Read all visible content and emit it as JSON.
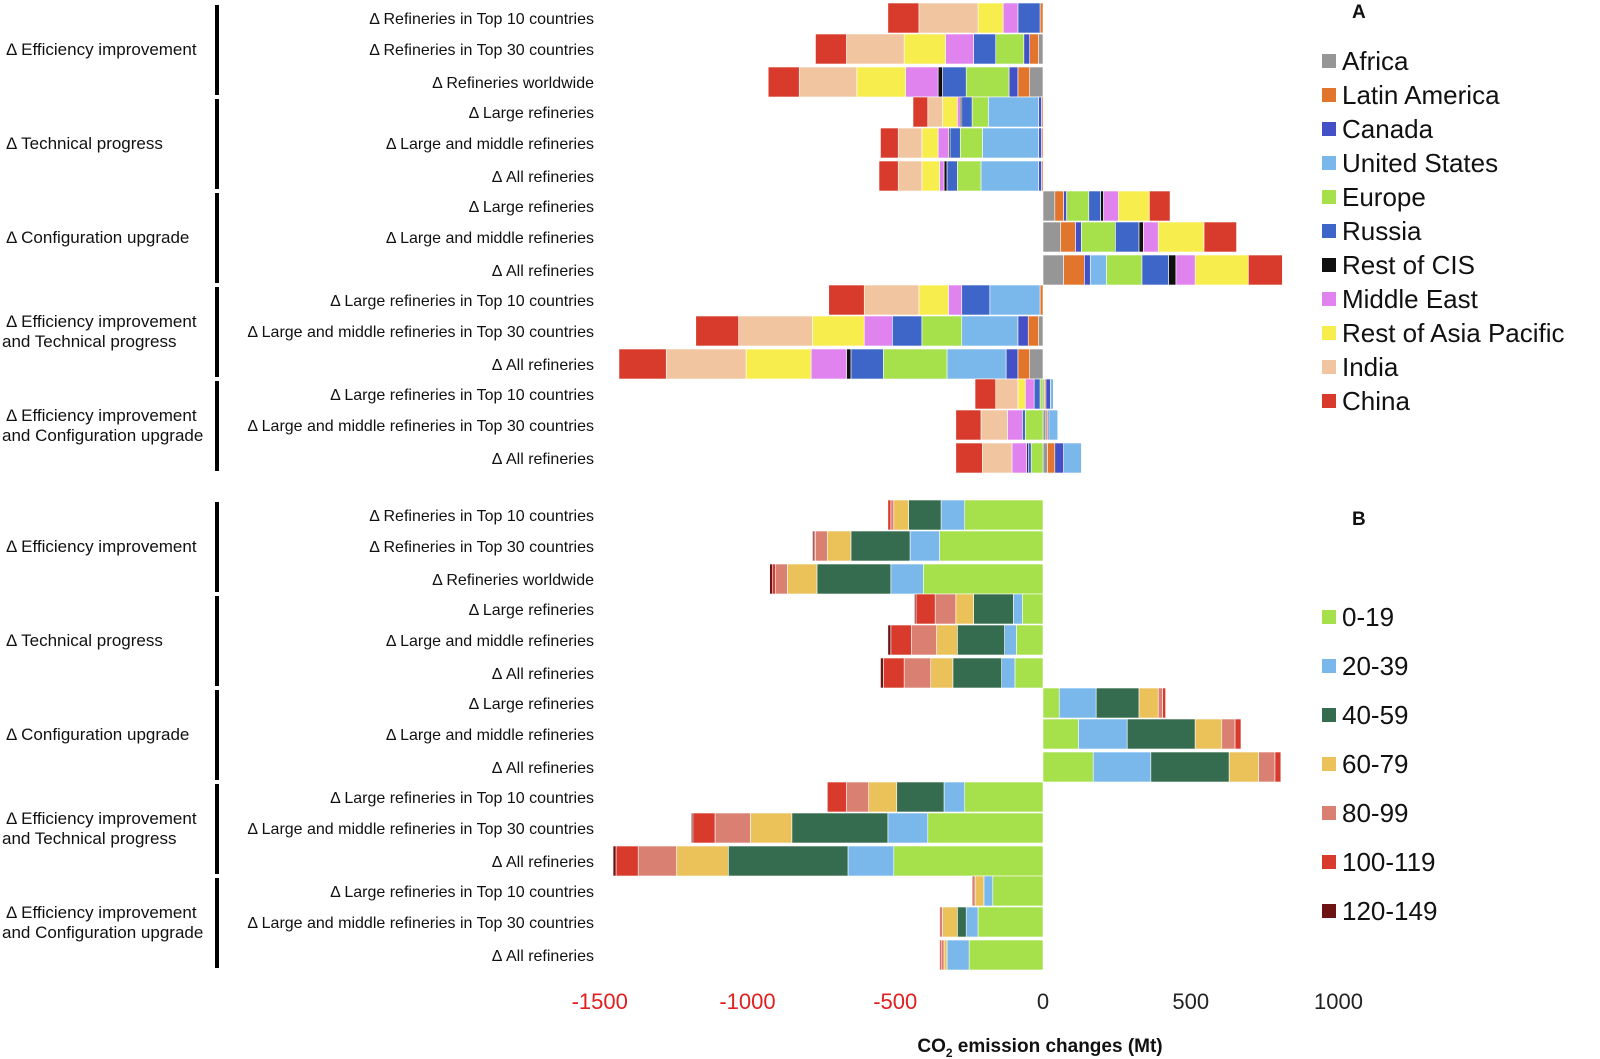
{
  "chart_data": [
    {
      "panel": "A",
      "type": "bar",
      "stacked": true,
      "orientation": "horizontal",
      "stack_by": "region",
      "xlim": [
        -1500,
        1000
      ],
      "xlabel": "CO2 emission changes (Mt)",
      "groups": [
        {
          "label": "Δ Efficiency improvement",
          "rows": [
            {
              "label": "Δ Refineries in Top 10 countries",
              "values": [
                0,
                10,
                0,
                0,
                0,
                75,
                0,
                50,
                85,
                200,
                105
              ]
            },
            {
              "label": "Δ Refineries in Top 30 countries",
              "values": [
                15,
                30,
                20,
                0,
                95,
                75,
                0,
                95,
                140,
                195,
                105
              ]
            },
            {
              "label": "Δ Refineries worldwide",
              "values": [
                45,
                40,
                30,
                0,
                145,
                80,
                15,
                110,
                165,
                195,
                105
              ]
            }
          ]
        },
        {
          "label": "Δ Technical progress",
          "rows": [
            {
              "label": "Δ Large refineries",
              "values": [
                0,
                5,
                10,
                170,
                55,
                35,
                5,
                10,
                50,
                50,
                50
              ]
            },
            {
              "label": "Δ Large and middle refineries",
              "values": [
                0,
                5,
                10,
                190,
                75,
                35,
                5,
                35,
                55,
                80,
                60
              ]
            },
            {
              "label": "Δ All refineries",
              "values": [
                0,
                5,
                10,
                195,
                80,
                35,
                10,
                15,
                60,
                80,
                65
              ]
            }
          ]
        },
        {
          "label": "Δ Configuration upgrade",
          "rows": [
            {
              "label": "Δ Large refineries",
              "values": [
                40,
                30,
                10,
                0,
                75,
                40,
                10,
                50,
                105,
                0,
                70
              ]
            },
            {
              "label": "Δ Large and middle refineries",
              "values": [
                60,
                50,
                20,
                0,
                115,
                80,
                15,
                50,
                155,
                0,
                110
              ]
            },
            {
              "label": "Δ All refineries",
              "values": [
                70,
                70,
                20,
                55,
                120,
                90,
                25,
                65,
                180,
                0,
                115
              ]
            }
          ]
        },
        {
          "label": "Δ Efficiency improvement and Technical progress",
          "rows": [
            {
              "label": "Δ Large refineries in Top 10 countries",
              "values": [
                0,
                10,
                0,
                170,
                0,
                95,
                0,
                45,
                100,
                185,
                120
              ]
            },
            {
              "label": "Δ Large and middle refineries in Top 30 countries",
              "values": [
                15,
                35,
                35,
                190,
                135,
                100,
                0,
                95,
                175,
                250,
                145
              ]
            },
            {
              "label": "Δ All refineries",
              "values": [
                45,
                40,
                40,
                200,
                215,
                110,
                15,
                120,
                220,
                270,
                160
              ]
            }
          ]
        },
        {
          "label": "Δ Efficiency improvement and Configuration upgrade",
          "rows": [
            {
              "label": "Δ Large refineries in Top 10 countries",
              "values": [
                5,
                5,
                15,
                10,
                10,
                20,
                0,
                30,
                25,
                75,
                70
              ]
            },
            {
              "label": "Δ Large and middle refineries in Top 30 countries",
              "values": [
                10,
                5,
                5,
                30,
                60,
                10,
                0,
                50,
                0,
                90,
                85
              ]
            },
            {
              "label": "Δ All refineries",
              "values": [
                15,
                25,
                30,
                60,
                40,
                10,
                5,
                50,
                0,
                100,
                90
              ]
            }
          ]
        }
      ]
    },
    {
      "panel": "B",
      "type": "bar",
      "stacked": true,
      "orientation": "horizontal",
      "stack_by": "band",
      "xlim": [
        -1500,
        1000
      ],
      "xlabel": "CO2 emission changes (Mt)",
      "groups": [
        {
          "label": "Δ Efficiency improvement",
          "rows": [
            {
              "label": "Δ Refineries in Top 10 countries",
              "values": [
                265,
                80,
                110,
                50,
                10,
                10,
                0
              ]
            },
            {
              "label": "Δ Refineries in Top 30 countries",
              "values": [
                350,
                100,
                200,
                80,
                40,
                5,
                5
              ]
            },
            {
              "label": "Δ Refineries worldwide",
              "values": [
                405,
                110,
                250,
                100,
                40,
                10,
                10
              ]
            }
          ]
        },
        {
          "label": "Δ Technical progress",
          "rows": [
            {
              "label": "Δ Large refineries",
              "values": [
                70,
                30,
                135,
                60,
                70,
                65,
                5
              ]
            },
            {
              "label": "Δ Large and middle refineries",
              "values": [
                90,
                40,
                160,
                70,
                85,
                70,
                10
              ]
            },
            {
              "label": "Δ All refineries",
              "values": [
                95,
                45,
                165,
                75,
                90,
                70,
                10
              ]
            }
          ]
        },
        {
          "label": "Δ Configuration upgrade",
          "rows": [
            {
              "label": "Δ Large refineries",
              "values": [
                55,
                125,
                145,
                65,
                15,
                10,
                0
              ]
            },
            {
              "label": "Δ Large and middle refineries",
              "values": [
                120,
                165,
                230,
                90,
                45,
                20,
                0
              ]
            },
            {
              "label": "Δ All refineries",
              "values": [
                170,
                195,
                265,
                100,
                55,
                20,
                0
              ]
            }
          ]
        },
        {
          "label": "Δ Efficiency improvement and Technical progress",
          "rows": [
            {
              "label": "Δ Large refineries in Top 10 countries",
              "values": [
                265,
                70,
                160,
                95,
                75,
                65,
                0
              ]
            },
            {
              "label": "Δ Large and middle refineries in Top 30 countries",
              "values": [
                390,
                135,
                325,
                140,
                120,
                75,
                5
              ]
            },
            {
              "label": "Δ All refineries",
              "values": [
                505,
                155,
                405,
                175,
                130,
                75,
                10
              ]
            }
          ]
        },
        {
          "label": "Δ Efficiency improvement and Configuration upgrade",
          "rows": [
            {
              "label": "Δ Large refineries in Top 10 countries",
              "values": [
                170,
                30,
                0,
                30,
                10,
                0,
                0
              ]
            },
            {
              "label": "Δ Large and middle refineries in Top 30 countries",
              "values": [
                220,
                40,
                30,
                50,
                10,
                0,
                0
              ]
            },
            {
              "label": "Δ All refineries",
              "values": [
                250,
                75,
                0,
                10,
                10,
                5,
                0
              ]
            }
          ]
        }
      ]
    }
  ],
  "series_order_note": "Stacks are listed from the zero axis outward.",
  "legend_a": {
    "label": "A",
    "items": [
      {
        "name": "Africa",
        "color": "#969696"
      },
      {
        "name": "Latin America",
        "color": "#e2752c"
      },
      {
        "name": "Canada",
        "color": "#4451c6"
      },
      {
        "name": "United States",
        "color": "#7ab8ec"
      },
      {
        "name": "Europe",
        "color": "#a6e04b"
      },
      {
        "name": "Russia",
        "color": "#3e66c8"
      },
      {
        "name": "Rest of CIS",
        "color": "#101010"
      },
      {
        "name": "Middle East",
        "color": "#e183ee"
      },
      {
        "name": "Rest of Asia Pacific",
        "color": "#f7ee4e"
      },
      {
        "name": "India",
        "color": "#f2c5a1"
      },
      {
        "name": "China",
        "color": "#d83a2c"
      }
    ],
    "stack_order": [
      "Africa",
      "Latin America",
      "Canada",
      "United States",
      "Europe",
      "Russia",
      "Rest of CIS",
      "Middle East",
      "Rest of Asia Pacific",
      "India",
      "China"
    ]
  },
  "legend_b": {
    "label": "B",
    "items": [
      {
        "name": "0-19",
        "color": "#a6e04b"
      },
      {
        "name": "20-39",
        "color": "#7ab8ec"
      },
      {
        "name": "40-59",
        "color": "#356b4f"
      },
      {
        "name": "60-79",
        "color": "#ebc15a"
      },
      {
        "name": "80-99",
        "color": "#da8073"
      },
      {
        "name": "100-119",
        "color": "#d83a2c"
      },
      {
        "name": "120-149",
        "color": "#6e1313"
      }
    ]
  },
  "axis": {
    "ticks": [
      {
        "value": -1500,
        "label": "-1500",
        "color": "#e02020"
      },
      {
        "value": -1000,
        "label": "-1000",
        "color": "#e02020"
      },
      {
        "value": -500,
        "label": "-500",
        "color": "#e02020"
      },
      {
        "value": 0,
        "label": "0",
        "color": "#222222"
      },
      {
        "value": 500,
        "label": "500",
        "color": "#222222"
      },
      {
        "value": 1000,
        "label": "1000",
        "color": "#222222"
      }
    ],
    "title_main": "CO",
    "title_sub": "2",
    "title_rest": " emission changes (Mt)"
  }
}
